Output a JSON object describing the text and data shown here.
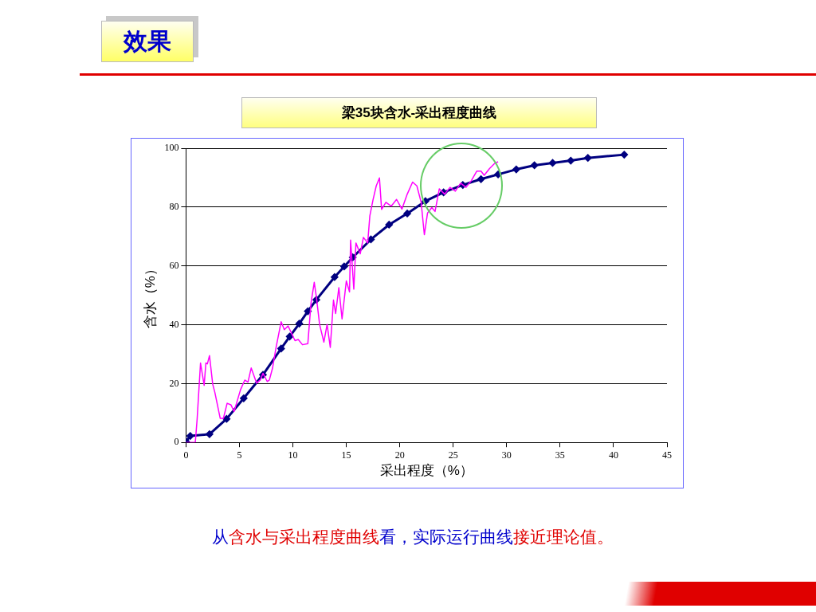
{
  "chart_data": {
    "type": "line",
    "title": "梁35块含水-采出程度曲线",
    "xlabel": "采出程度（%）",
    "ylabel": "含水（%）",
    "xlim": [
      0,
      45
    ],
    "xticks": [
      0,
      5,
      10,
      15,
      20,
      25,
      30,
      35,
      40,
      45
    ],
    "ylim": [
      0,
      100
    ],
    "yticks": [
      0,
      20,
      40,
      60,
      80,
      100
    ],
    "grid": "y",
    "legend": false,
    "series": [
      {
        "color": "#ff00ff",
        "marker": "none",
        "x": [
          0,
          0.87,
          1.04,
          1.36,
          1.7,
          1.86,
          2.0,
          2.2,
          2.5,
          2.7,
          3.2,
          3.5,
          3.85,
          4.2,
          4.5,
          5.1,
          5.5,
          5.8,
          6.1,
          6.6,
          6.95,
          7.2,
          7.6,
          7.8,
          8.1,
          8.4,
          8.9,
          9.2,
          9.55,
          10.2,
          10.5,
          10.9,
          11.4,
          11.7,
          12.0,
          12.2,
          12.5,
          12.9,
          13.2,
          13.5,
          13.8,
          14.0,
          14.3,
          14.6,
          15.0,
          15.3,
          15.4,
          15.7,
          15.9,
          16.3,
          16.6,
          17.0,
          17.2,
          17.5,
          17.8,
          18.1,
          18.3,
          18.7,
          19.2,
          19.7,
          20.2,
          20.7,
          21.2,
          21.6,
          22.0,
          22.3,
          22.6,
          23.0,
          23.3,
          23.7,
          24.2,
          24.7,
          25.2,
          25.7,
          26.2,
          26.7,
          27.2,
          27.6,
          27.9,
          28.4,
          28.9,
          29.2
        ],
        "values": [
          0,
          0,
          7.8,
          27,
          19.4,
          27,
          26.7,
          29.5,
          19.8,
          17,
          8.2,
          8.2,
          13.3,
          12.8,
          10.5,
          17.9,
          21.2,
          20.5,
          25.3,
          20.2,
          21.2,
          23.5,
          20.7,
          21.2,
          25.3,
          31.8,
          41,
          38.3,
          39.6,
          34.6,
          35,
          33.2,
          33.6,
          47.5,
          54.4,
          49.4,
          40.1,
          34.1,
          40.1,
          32.3,
          48.4,
          43.8,
          52.6,
          42,
          54.9,
          51.2,
          68.8,
          52.1,
          67.8,
          64.1,
          69.7,
          67.8,
          77,
          82.5,
          87.2,
          89.9,
          79.2,
          81.6,
          80.3,
          82.6,
          79.3,
          84.4,
          88.5,
          87.2,
          81.6,
          70.6,
          78,
          79.8,
          78.5,
          86.2,
          84.4,
          86.7,
          85.4,
          88.1,
          86.7,
          89,
          92.2,
          92.2,
          90.8,
          93.1,
          94.9,
          95.4
        ]
      },
      {
        "color": "#000080",
        "marker": "diamond",
        "x": [
          0,
          0.4,
          2.2,
          3.8,
          5.4,
          7.2,
          8.9,
          9.7,
          10.6,
          11.4,
          12.2,
          13.9,
          14.8,
          15.6,
          17.3,
          19.0,
          20.7,
          22.4,
          24.1,
          25.9,
          27.6,
          29.2,
          30.9,
          32.6,
          34.3,
          36.0,
          37.6,
          41.0
        ],
        "values": [
          0.3,
          2.2,
          2.8,
          8.0,
          15,
          23,
          31.9,
          36,
          40.4,
          44.6,
          48.5,
          56.2,
          59.8,
          62.9,
          69,
          74,
          77.8,
          82,
          85,
          87.5,
          89.5,
          91.1,
          92.8,
          94.2,
          95,
          95.8,
          96.7,
          97.8
        ]
      }
    ],
    "annotations": [
      "效果",
      "从",
      "含水与采出程度曲线",
      "看，实际运行曲线",
      "接近理论值。"
    ]
  }
}
